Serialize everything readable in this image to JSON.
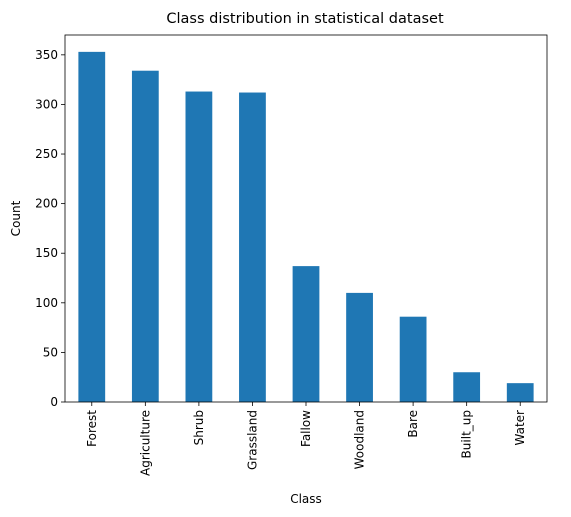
{
  "chart_data": {
    "type": "bar",
    "title": "Class distribution in statistical dataset",
    "xlabel": "Class",
    "ylabel": "Count",
    "categories": [
      "Forest",
      "Agriculture",
      "Shrub",
      "Grassland",
      "Fallow",
      "Woodland",
      "Bare",
      "Built_up",
      "Water"
    ],
    "values": [
      353,
      334,
      313,
      312,
      137,
      110,
      86,
      30,
      19
    ],
    "ylim": [
      0,
      370
    ],
    "yticks": [
      0,
      50,
      100,
      150,
      200,
      250,
      300,
      350
    ],
    "grid": false,
    "bar_color": "#1f77b4",
    "legend": "none"
  }
}
